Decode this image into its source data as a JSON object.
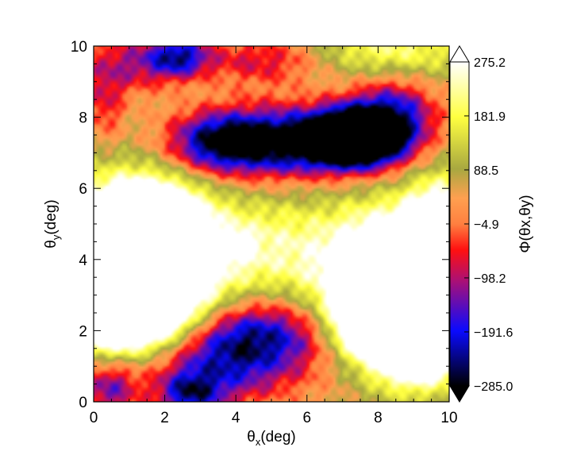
{
  "chart_data": {
    "type": "heatmap",
    "title": "",
    "xlabel": {
      "main": "θ",
      "sub": "x",
      "unit": "(deg)"
    },
    "ylabel": {
      "main": "θ",
      "sub": "y",
      "unit": "(deg)"
    },
    "xlim": [
      0,
      10
    ],
    "ylim": [
      0,
      10
    ],
    "x_ticks": [
      "0",
      "2",
      "4",
      "6",
      "8",
      "10"
    ],
    "y_ticks": [
      "0",
      "2",
      "4",
      "6",
      "8",
      "10"
    ],
    "colorbar": {
      "label": "Φ(θx,θy)",
      "range": [
        -285.0,
        275.2
      ],
      "tick_values": [
        275.2,
        181.9,
        88.5,
        -4.9,
        -98.2,
        -191.6,
        -285.0
      ],
      "tick_labels": [
        "275.2",
        "181.9",
        "88.5",
        "−4.9",
        "−98.2",
        "−191.6",
        "−285.0"
      ],
      "colors": [
        {
          "v": 0.0,
          "c": "#000000"
        },
        {
          "v": 0.17,
          "c": "#0a0aff"
        },
        {
          "v": 0.33,
          "c": "#b01070"
        },
        {
          "v": 0.42,
          "c": "#ff1010"
        },
        {
          "v": 0.5,
          "c": "#ff8040"
        },
        {
          "v": 0.58,
          "c": "#ffa050"
        },
        {
          "v": 0.67,
          "c": "#a8a840"
        },
        {
          "v": 0.83,
          "c": "#ffff40"
        },
        {
          "v": 1.0,
          "c": "#ffffff"
        }
      ]
    },
    "features": [
      {
        "x": 7.3,
        "y": 7.4,
        "sx": 0.9,
        "sy": 0.55,
        "a": -560
      },
      {
        "x": 5.0,
        "y": 7.3,
        "sx": 1.6,
        "sy": 0.7,
        "a": -360
      },
      {
        "x": 8.4,
        "y": 8.0,
        "sx": 0.9,
        "sy": 0.8,
        "a": -260
      },
      {
        "x": 3.4,
        "y": 7.3,
        "sx": 0.9,
        "sy": 0.55,
        "a": -180
      },
      {
        "x": 2.4,
        "y": 9.7,
        "sx": 0.6,
        "sy": 0.4,
        "a": -240
      },
      {
        "x": 1.0,
        "y": 9.5,
        "sx": 1.0,
        "sy": 0.6,
        "a": -160
      },
      {
        "x": 4.8,
        "y": 9.6,
        "sx": 1.3,
        "sy": 0.5,
        "a": -150
      },
      {
        "x": 8.3,
        "y": 9.9,
        "sx": 1.6,
        "sy": 0.6,
        "a": 150
      },
      {
        "x": 0.3,
        "y": 8.3,
        "sx": 0.4,
        "sy": 0.7,
        "a": -120
      },
      {
        "x": 1.1,
        "y": 4.0,
        "sx": 1.4,
        "sy": 1.3,
        "a": 680
      },
      {
        "x": 0.9,
        "y": 2.6,
        "sx": 1.2,
        "sy": 0.8,
        "a": 380
      },
      {
        "x": 1.6,
        "y": 5.1,
        "sx": 0.9,
        "sy": 0.7,
        "a": 250
      },
      {
        "x": 8.7,
        "y": 3.2,
        "sx": 1.3,
        "sy": 1.3,
        "a": 690
      },
      {
        "x": 9.1,
        "y": 1.6,
        "sx": 0.8,
        "sy": 0.7,
        "a": 380
      },
      {
        "x": 9.7,
        "y": 4.9,
        "sx": 0.6,
        "sy": 1.0,
        "a": 250
      },
      {
        "x": 7.5,
        "y": 2.2,
        "sx": 0.6,
        "sy": 0.6,
        "a": 180
      },
      {
        "x": 5.0,
        "y": 4.3,
        "sx": 1.6,
        "sy": 1.0,
        "a": 150
      },
      {
        "x": 4.1,
        "y": 4.4,
        "sx": 0.25,
        "sy": 0.25,
        "a": 150
      },
      {
        "x": 4.7,
        "y": 1.9,
        "sx": 1.4,
        "sy": 0.7,
        "a": -260
      },
      {
        "x": 3.3,
        "y": 0.9,
        "sx": 1.4,
        "sy": 0.8,
        "a": -220
      },
      {
        "x": 2.7,
        "y": 0.2,
        "sx": 0.6,
        "sy": 0.4,
        "a": -200
      },
      {
        "x": 6.2,
        "y": 0.8,
        "sx": 1.3,
        "sy": 0.8,
        "a": -40
      },
      {
        "x": 0.4,
        "y": 0.4,
        "sx": 0.6,
        "sy": 0.6,
        "a": -200
      }
    ],
    "baseline": 70
  }
}
